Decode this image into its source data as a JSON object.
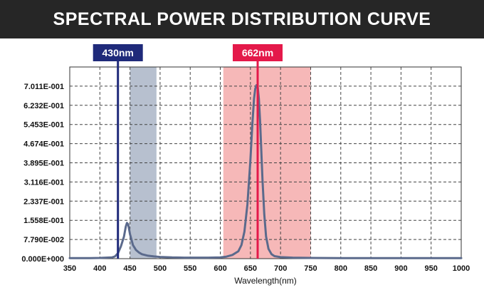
{
  "header": {
    "title": "SPECTRAL POWER DISTRIBUTION CURVE"
  },
  "chart_data": {
    "type": "line",
    "title": "SPECTRAL POWER DISTRIBUTION CURVE",
    "xlabel": "Wavelength(nm)",
    "ylabel": "",
    "xlim": [
      350,
      1000
    ],
    "ylim": [
      0,
      0.779
    ],
    "grid": true,
    "x_ticks": [
      350,
      400,
      450,
      500,
      550,
      600,
      650,
      700,
      750,
      800,
      850,
      900,
      950,
      1000
    ],
    "x_tick_labels": [
      "350",
      "400",
      "450",
      "500",
      "550",
      "600",
      "650",
      "700",
      "750",
      "800",
      "850",
      "900",
      "950",
      "1000"
    ],
    "y_ticks": [
      0,
      0.0779,
      0.1558,
      0.2337,
      0.3116,
      0.3895,
      0.4674,
      0.5453,
      0.6232,
      0.7011
    ],
    "y_tick_labels": [
      "0.000E+000",
      "7.790E-002",
      "1.558E-001",
      "2.337E-001",
      "3.116E-001",
      "3.895E-001",
      "4.674E-001",
      "5.453E-001",
      "6.232E-001",
      "7.011E-001"
    ],
    "series": [
      {
        "color": "#5b6a8c",
        "x": [
          350,
          380,
          400,
          420,
          425,
          430,
          435,
          440,
          443,
          445,
          447,
          450,
          455,
          460,
          465,
          470,
          480,
          490,
          500,
          520,
          540,
          560,
          580,
          600,
          610,
          620,
          630,
          635,
          640,
          645,
          650,
          653,
          656,
          658,
          660,
          662,
          664,
          666,
          668,
          670,
          673,
          676,
          680,
          685,
          690,
          700,
          720,
          750,
          800,
          850,
          900,
          950,
          1000
        ],
        "y": [
          0.002,
          0.002,
          0.003,
          0.005,
          0.009,
          0.022,
          0.05,
          0.09,
          0.13,
          0.145,
          0.14,
          0.1,
          0.055,
          0.035,
          0.025,
          0.018,
          0.012,
          0.009,
          0.007,
          0.005,
          0.004,
          0.004,
          0.004,
          0.005,
          0.008,
          0.015,
          0.03,
          0.055,
          0.11,
          0.22,
          0.4,
          0.54,
          0.65,
          0.69,
          0.705,
          0.7,
          0.65,
          0.56,
          0.44,
          0.32,
          0.18,
          0.09,
          0.04,
          0.018,
          0.01,
          0.006,
          0.004,
          0.003,
          0.002,
          0.002,
          0.002,
          0.002,
          0.002
        ]
      }
    ],
    "bands": [
      {
        "from": 450,
        "to": 494,
        "color": "#b7c0cf"
      },
      {
        "from": 605,
        "to": 750,
        "color": "#f6b8b8"
      }
    ],
    "markers": [
      {
        "x": 430,
        "label": "430nm",
        "color": "#1f2a7a"
      },
      {
        "x": 662,
        "label": "662nm",
        "color": "#e4194a"
      }
    ],
    "colors": {
      "title_bar": "#262626",
      "grid": "#444444",
      "curve": "#5b6a8c"
    }
  }
}
